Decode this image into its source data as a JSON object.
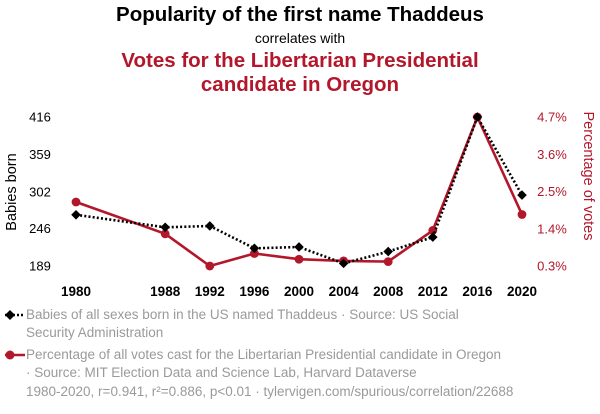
{
  "chart_data": {
    "type": "line",
    "title": "Popularity of the first name Thaddeus",
    "subtitle": "correlates with",
    "title2": "Votes for the Libertarian Presidential candidate in Oregon",
    "title2_lines": [
      "Votes for the Libertarian Presidential",
      "candidate in Oregon"
    ],
    "colors": {
      "series1": "#000000",
      "series2": "#b3172b",
      "text_primary": "#000000",
      "text_muted": "#9a9a9a"
    },
    "x": [
      1980,
      1988,
      1992,
      1996,
      2000,
      2004,
      2008,
      2012,
      2016,
      2020
    ],
    "x_tick_labels": [
      "1980",
      "1988",
      "1992",
      "1996",
      "2000",
      "2004",
      "2008",
      "2012",
      "2016",
      "2020"
    ],
    "xlim": [
      1980,
      2020
    ],
    "left_axis": {
      "label": "Babies born",
      "ticks": [
        189,
        246,
        302,
        359,
        416
      ],
      "tick_labels": [
        "189",
        "246",
        "302",
        "359",
        "416"
      ],
      "ylim": [
        189,
        416
      ]
    },
    "right_axis": {
      "label": "Percentage of votes",
      "ticks": [
        0.3,
        1.4,
        2.5,
        3.6,
        4.7
      ],
      "tick_labels": [
        "0.3%",
        "1.4%",
        "2.5%",
        "3.6%",
        "4.7%"
      ],
      "ylim": [
        0.3,
        4.7
      ]
    },
    "series": [
      {
        "name": "Babies of all sexes born in the US named Thaddeus · Source: US Social Security Administration",
        "axis": "left",
        "style": "dotted",
        "marker": "diamond",
        "values": [
          267,
          248,
          250,
          216,
          218,
          193,
          211,
          233,
          416,
          297
        ]
      },
      {
        "name": "Percentage of all votes cast for the Libertarian Presidential candidate in Oregon · Source: MIT Election Data and Science Lab, Harvard Dataverse",
        "axis": "right",
        "style": "solid",
        "marker": "circle",
        "values": [
          2.19,
          1.25,
          0.3,
          0.67,
          0.5,
          0.45,
          0.43,
          1.35,
          4.7,
          1.82
        ]
      }
    ],
    "grid": false
  },
  "legend": {
    "item1_line1": "Babies of all sexes born in the US named Thaddeus · Source: US Social",
    "item1_line2": "Security Administration",
    "item2_line1": "Percentage of all votes cast for the Libertarian Presidential candidate in Oregon",
    "item2_line2": "· Source: MIT Election Data and Science Lab, Harvard Dataverse"
  },
  "footer": "1980-2020, r=0.941, r²=0.886, p<0.01 · tylervigen.com/spurious/correlation/22688"
}
